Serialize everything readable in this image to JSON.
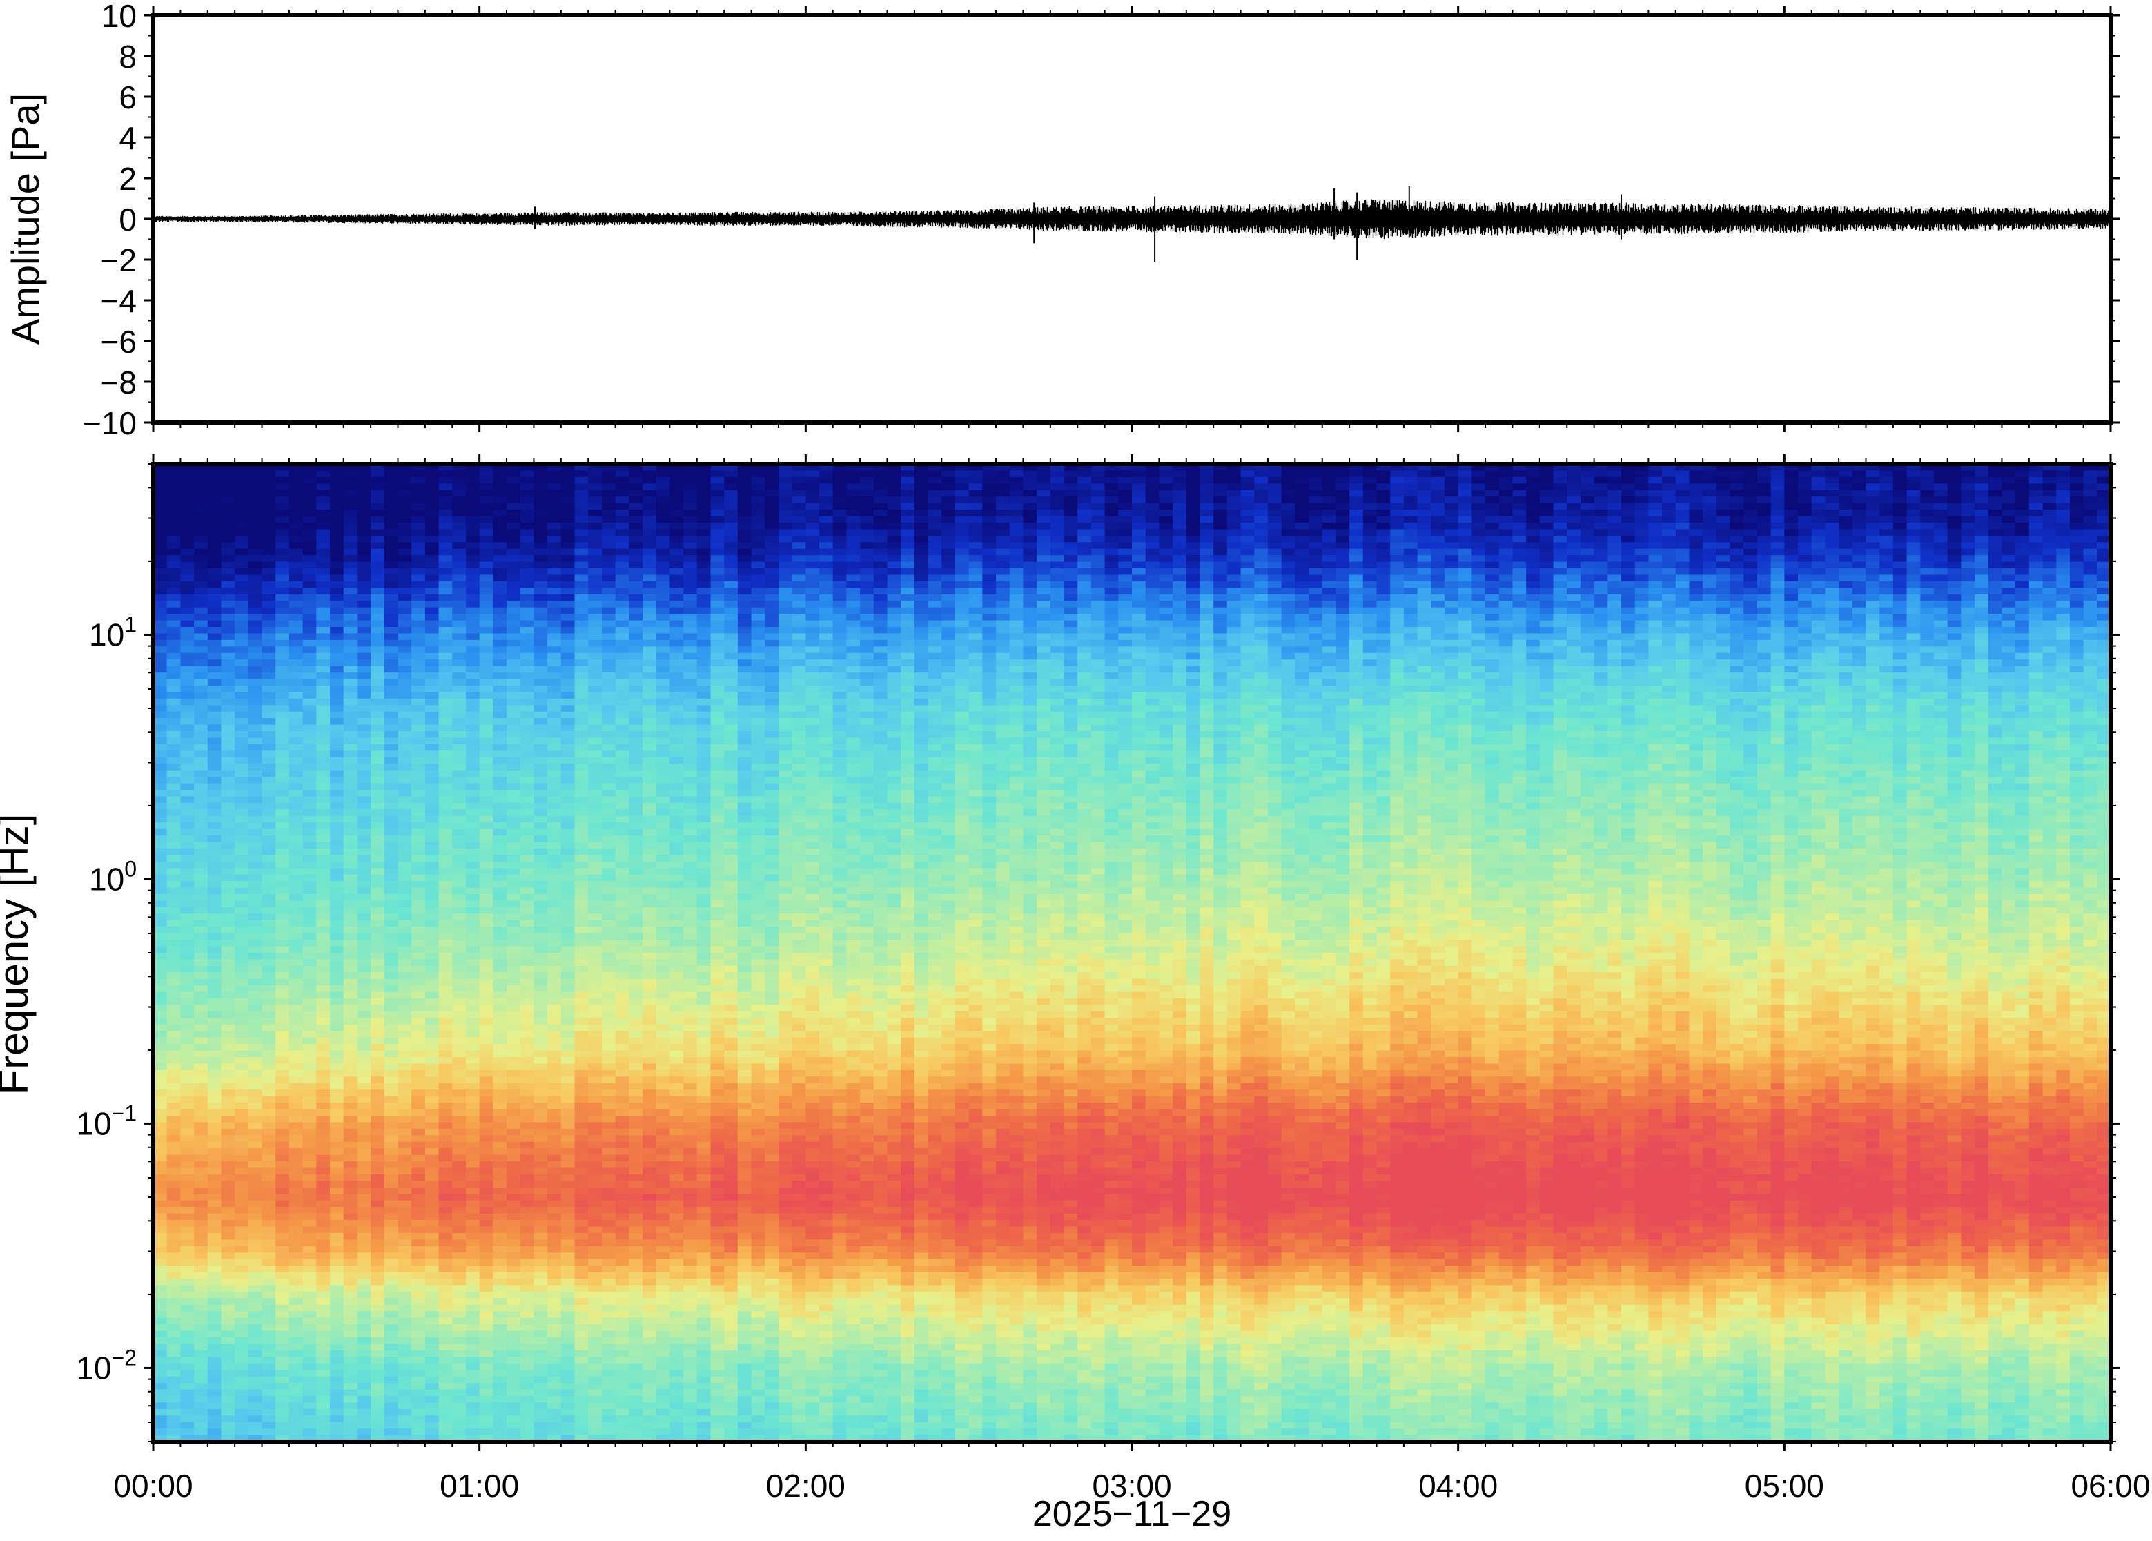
{
  "chart_data": [
    {
      "type": "line",
      "panel": "waveform",
      "ylabel": "Amplitude [Pa]",
      "ylim": [
        -10,
        10
      ],
      "yticks": [
        10,
        8,
        6,
        4,
        2,
        0,
        -2,
        -4,
        -6,
        -8,
        -10
      ],
      "ytick_labels": [
        "10",
        "8",
        "6",
        "4",
        "2",
        "0",
        "−2",
        "−4",
        "−6",
        "−8",
        "−10"
      ],
      "x_hours": [
        0,
        0.25,
        0.5,
        0.75,
        1.0,
        1.25,
        1.5,
        1.75,
        2.0,
        2.25,
        2.5,
        2.75,
        3.0,
        3.25,
        3.5,
        3.75,
        4.0,
        4.25,
        4.5,
        4.75,
        5.0,
        5.25,
        5.5,
        5.75,
        6.0
      ],
      "envelope_pa": [
        0.15,
        0.15,
        0.2,
        0.25,
        0.3,
        0.35,
        0.3,
        0.35,
        0.35,
        0.4,
        0.45,
        0.6,
        0.65,
        0.7,
        0.75,
        1.0,
        0.85,
        0.8,
        0.8,
        0.75,
        0.7,
        0.6,
        0.6,
        0.55,
        0.5
      ],
      "spikes": [
        {
          "t_hours": 1.17,
          "min": -0.5,
          "max": 0.6
        },
        {
          "t_hours": 2.7,
          "min": -1.2,
          "max": 0.8
        },
        {
          "t_hours": 3.07,
          "min": -2.1,
          "max": 1.1
        },
        {
          "t_hours": 3.62,
          "min": -1.0,
          "max": 1.5
        },
        {
          "t_hours": 3.69,
          "min": -2.0,
          "max": 1.3
        },
        {
          "t_hours": 3.85,
          "min": -0.9,
          "max": 1.6
        },
        {
          "t_hours": 4.5,
          "min": -1.0,
          "max": 1.2
        }
      ],
      "line_color": "#000000"
    },
    {
      "type": "heatmap",
      "panel": "spectrogram",
      "ylabel": "Frequency [Hz]",
      "yscale": "log",
      "ylim_hz": [
        0.005,
        50
      ],
      "yticks_hz": [
        10,
        1,
        0.1,
        0.01
      ],
      "ytick_base": [
        "10",
        "10",
        "10",
        "10"
      ],
      "ytick_exp": [
        "1",
        "0",
        "−1",
        "−2"
      ],
      "colormap": [
        "#0a0a78",
        "#1030c8",
        "#2a8ff0",
        "#55c8ee",
        "#6ee6d0",
        "#a8ecb0",
        "#e8f08a",
        "#f8c860",
        "#f59a48",
        "#ee6a48",
        "#e84c58"
      ],
      "band_profile_normalized_by_freq": [
        {
          "hz": 50,
          "v": 0.0
        },
        {
          "hz": 30,
          "v": 0.02
        },
        {
          "hz": 20,
          "v": 0.08
        },
        {
          "hz": 10,
          "v": 0.22
        },
        {
          "hz": 5,
          "v": 0.33
        },
        {
          "hz": 2,
          "v": 0.4
        },
        {
          "hz": 1,
          "v": 0.45
        },
        {
          "hz": 0.5,
          "v": 0.52
        },
        {
          "hz": 0.2,
          "v": 0.65
        },
        {
          "hz": 0.1,
          "v": 0.85
        },
        {
          "hz": 0.05,
          "v": 0.95
        },
        {
          "hz": 0.03,
          "v": 0.82
        },
        {
          "hz": 0.02,
          "v": 0.62
        },
        {
          "hz": 0.01,
          "v": 0.45
        },
        {
          "hz": 0.005,
          "v": 0.38
        }
      ],
      "intensity_trend_by_hour": [
        {
          "t_hours": 0,
          "v": -0.12
        },
        {
          "t_hours": 1,
          "v": -0.04
        },
        {
          "t_hours": 2,
          "v": 0.0
        },
        {
          "t_hours": 3,
          "v": 0.06
        },
        {
          "t_hours": 4,
          "v": 0.1
        },
        {
          "t_hours": 5,
          "v": 0.08
        },
        {
          "t_hours": 6,
          "v": 0.05
        }
      ]
    }
  ],
  "xaxis": {
    "ticks_hours": [
      0,
      1,
      2,
      3,
      4,
      5,
      6
    ],
    "tick_labels": [
      "00:00",
      "01:00",
      "02:00",
      "03:00",
      "04:00",
      "05:00",
      "06:00"
    ],
    "label": "2025−11−29"
  }
}
